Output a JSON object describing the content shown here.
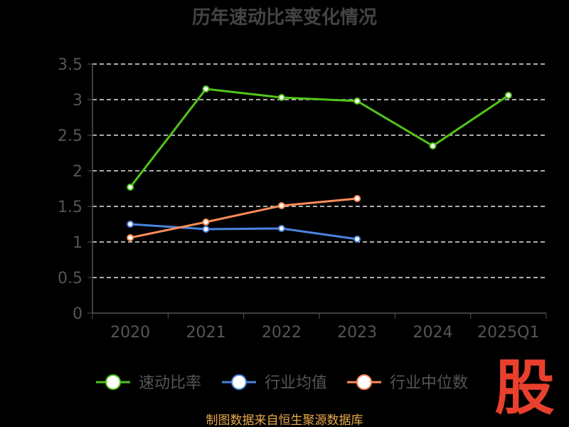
{
  "chart_data": {
    "type": "line",
    "title": "历年速动比率变化情况",
    "categories": [
      "2020",
      "2021",
      "2022",
      "2023",
      "2024",
      "2025Q1"
    ],
    "y_ticks": [
      "0",
      "0.5",
      "1",
      "1.5",
      "2",
      "2.5",
      "3",
      "3.5"
    ],
    "ylim": [
      0,
      3.5
    ],
    "grid": true,
    "legend_position": "bottom",
    "series": [
      {
        "name": "速动比率",
        "color": "#52c41a",
        "values": [
          1.77,
          3.15,
          3.03,
          2.98,
          2.35,
          3.06
        ]
      },
      {
        "name": "行业均值",
        "color": "#4a84e0",
        "values": [
          1.25,
          1.18,
          1.19,
          1.04,
          null,
          null
        ]
      },
      {
        "name": "行业中位数",
        "color": "#ff8c5a",
        "values": [
          1.06,
          1.28,
          1.51,
          1.61,
          null,
          null
        ]
      }
    ]
  },
  "footer": {
    "source": "制图数据来自恒生聚源数据库"
  },
  "logo": {
    "text": "股"
  }
}
